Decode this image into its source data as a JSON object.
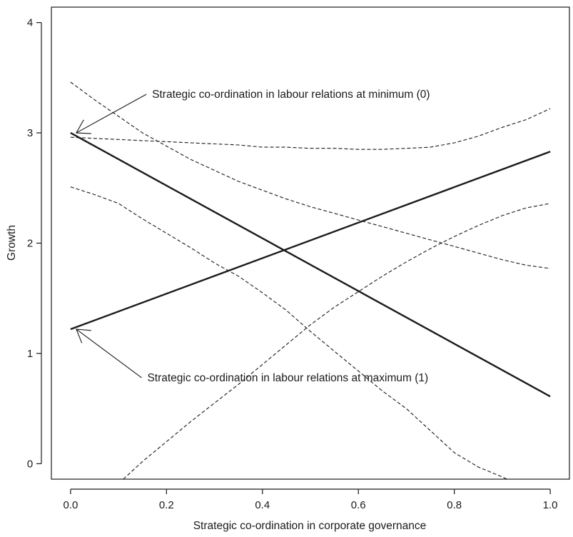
{
  "chart_data": {
    "type": "line",
    "title": "",
    "xlabel": "Strategic co-ordination in corporate governance",
    "ylabel": "Growth",
    "xlim": [
      -0.04,
      1.04
    ],
    "ylim": [
      -0.14,
      4.14
    ],
    "xticks": [
      0.0,
      0.2,
      0.4,
      0.6,
      0.8,
      1.0
    ],
    "xtick_labels": [
      "0.0",
      "0.2",
      "0.4",
      "0.6",
      "0.8",
      "1.0"
    ],
    "yticks": [
      0,
      1,
      2,
      3,
      4
    ],
    "ytick_labels": [
      "0",
      "1",
      "2",
      "3",
      "4"
    ],
    "grid": false,
    "series": [
      {
        "style": "solid",
        "x": [
          0.0,
          1.0
        ],
        "y": [
          3.0,
          0.61
        ]
      },
      {
        "style": "solid",
        "x": [
          0.0,
          1.0
        ],
        "y": [
          1.22,
          2.83
        ]
      },
      {
        "style": "dashed",
        "x": [
          0.0,
          0.05,
          0.1,
          0.15,
          0.2,
          0.25,
          0.3,
          0.35,
          0.4,
          0.45,
          0.5,
          0.55,
          0.6,
          0.65,
          0.7,
          0.75,
          0.8,
          0.85,
          0.9,
          0.95,
          1.0
        ],
        "y": [
          3.46,
          3.3,
          3.15,
          3.0,
          2.88,
          2.76,
          2.66,
          2.56,
          2.48,
          2.4,
          2.33,
          2.27,
          2.21,
          2.15,
          2.09,
          2.03,
          1.97,
          1.91,
          1.85,
          1.8,
          1.77
        ]
      },
      {
        "style": "dashed",
        "x": [
          0.0,
          0.05,
          0.1,
          0.15,
          0.2,
          0.25,
          0.3,
          0.35,
          0.4,
          0.45,
          0.5,
          0.55,
          0.6,
          0.65,
          0.7,
          0.75,
          0.8,
          0.85,
          0.9,
          0.95,
          1.0
        ],
        "y": [
          2.96,
          2.95,
          2.94,
          2.93,
          2.92,
          2.91,
          2.9,
          2.89,
          2.87,
          2.87,
          2.86,
          2.86,
          2.85,
          2.85,
          2.86,
          2.87,
          2.91,
          2.97,
          3.05,
          3.12,
          3.22
        ]
      },
      {
        "style": "dashed",
        "x": [
          0.0,
          0.05,
          0.1,
          0.15,
          0.2,
          0.25,
          0.3,
          0.35,
          0.4,
          0.45,
          0.5,
          0.55,
          0.6,
          0.65,
          0.7,
          0.75,
          0.8,
          0.85,
          0.9,
          0.91
        ],
        "y": [
          2.51,
          2.44,
          2.36,
          2.22,
          2.09,
          1.96,
          1.82,
          1.7,
          1.55,
          1.39,
          1.2,
          1.02,
          0.84,
          0.66,
          0.5,
          0.3,
          0.1,
          -0.03,
          -0.12,
          -0.14
        ]
      },
      {
        "style": "dashed",
        "x": [
          0.11,
          0.15,
          0.2,
          0.25,
          0.3,
          0.35,
          0.4,
          0.45,
          0.5,
          0.55,
          0.6,
          0.65,
          0.7,
          0.75,
          0.8,
          0.85,
          0.9,
          0.95,
          1.0
        ],
        "y": [
          -0.14,
          0.02,
          0.2,
          0.38,
          0.55,
          0.72,
          0.9,
          1.08,
          1.26,
          1.42,
          1.56,
          1.7,
          1.83,
          1.95,
          2.06,
          2.16,
          2.25,
          2.32,
          2.36
        ]
      },
      {
        "style": "dashed",
        "x": [
          0.11,
          1.0
        ],
        "y": [
          -0.14,
          -0.14
        ]
      }
    ],
    "annotations": [
      {
        "text": "Strategic co-ordination in labour relations at minimum (0)",
        "x": 0.17,
        "y": 3.35,
        "arrow_to": [
          0.0,
          3.0
        ]
      },
      {
        "text": "Strategic co-ordination in labour relations at maximum (1)",
        "x": 0.16,
        "y": 0.78,
        "arrow_to": [
          0.0,
          1.22
        ]
      }
    ]
  }
}
